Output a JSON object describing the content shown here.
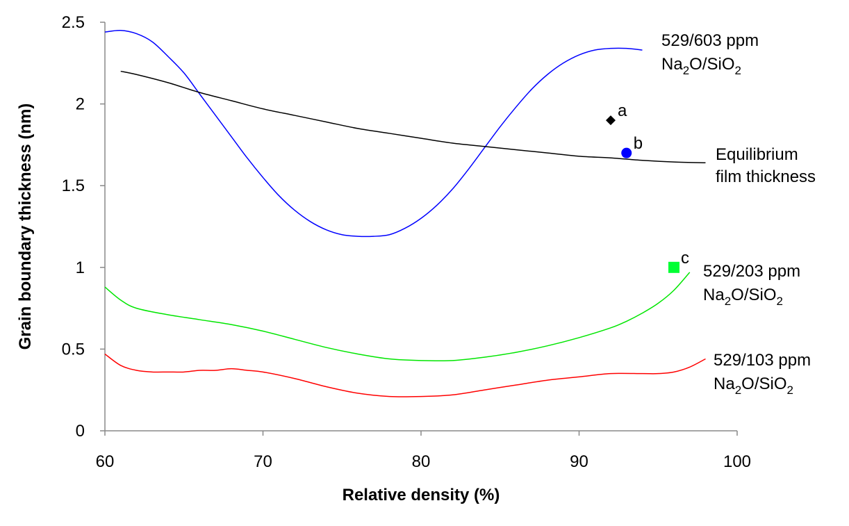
{
  "chart_data": {
    "type": "line",
    "xlabel": "Relative density (%)",
    "ylabel": "Grain boundary thickness (nm)",
    "xlim": [
      60,
      100
    ],
    "ylim": [
      0,
      2.5
    ],
    "x_ticks": [
      "60",
      "70",
      "80",
      "90",
      "100"
    ],
    "y_ticks": [
      "0",
      "0.5",
      "1",
      "1.5",
      "2",
      "2.5"
    ],
    "grid": false,
    "legend": "none",
    "series": [
      {
        "key": "s603",
        "color": "#0000ff",
        "x": [
          60,
          61,
          62,
          63,
          64,
          65,
          66,
          67,
          68,
          69,
          70,
          71,
          72,
          73,
          74,
          75,
          76,
          77,
          78,
          79,
          80,
          81,
          82,
          83,
          84,
          85,
          86,
          87,
          88,
          89,
          90,
          91,
          92,
          93,
          94
        ],
        "y": [
          2.44,
          2.45,
          2.43,
          2.38,
          2.29,
          2.19,
          2.06,
          1.93,
          1.8,
          1.67,
          1.55,
          1.44,
          1.35,
          1.28,
          1.23,
          1.2,
          1.19,
          1.19,
          1.2,
          1.24,
          1.3,
          1.38,
          1.48,
          1.6,
          1.73,
          1.86,
          1.98,
          2.09,
          2.18,
          2.25,
          2.3,
          2.33,
          2.34,
          2.34,
          2.33
        ]
      },
      {
        "key": "equilibrium",
        "color": "#000000",
        "x": [
          61,
          62,
          64,
          66,
          68,
          70,
          72,
          74,
          76,
          78,
          80,
          82,
          84,
          86,
          88,
          90,
          92,
          94,
          96,
          98
        ],
        "y": [
          2.2,
          2.18,
          2.13,
          2.07,
          2.02,
          1.97,
          1.93,
          1.89,
          1.85,
          1.82,
          1.79,
          1.76,
          1.74,
          1.72,
          1.7,
          1.68,
          1.67,
          1.655,
          1.645,
          1.64
        ]
      },
      {
        "key": "s203",
        "color": "#00e600",
        "x": [
          60,
          61,
          62,
          64,
          66,
          68,
          70,
          72,
          74,
          76,
          78,
          80,
          82,
          84,
          86,
          88,
          90,
          92,
          93,
          94,
          95,
          96,
          97
        ],
        "y": [
          0.88,
          0.8,
          0.75,
          0.71,
          0.68,
          0.65,
          0.61,
          0.56,
          0.51,
          0.47,
          0.44,
          0.43,
          0.43,
          0.45,
          0.48,
          0.52,
          0.57,
          0.63,
          0.67,
          0.72,
          0.78,
          0.86,
          0.97
        ]
      },
      {
        "key": "s103",
        "color": "#ff0000",
        "x": [
          60,
          61,
          62,
          63,
          64,
          65,
          66,
          67,
          68,
          69,
          70,
          72,
          74,
          76,
          78,
          80,
          82,
          84,
          86,
          88,
          90,
          92,
          94,
          95,
          96,
          97,
          98
        ],
        "y": [
          0.47,
          0.4,
          0.37,
          0.36,
          0.36,
          0.36,
          0.37,
          0.37,
          0.38,
          0.37,
          0.36,
          0.32,
          0.27,
          0.23,
          0.21,
          0.21,
          0.22,
          0.25,
          0.28,
          0.31,
          0.33,
          0.35,
          0.35,
          0.35,
          0.36,
          0.39,
          0.44
        ]
      }
    ],
    "points": [
      {
        "label": "a",
        "x": 92,
        "y": 1.9,
        "marker": "diamond",
        "color": "#000000"
      },
      {
        "label": "b",
        "x": 93,
        "y": 1.7,
        "marker": "circle",
        "color": "#0000ff"
      },
      {
        "label": "c",
        "x": 96,
        "y": 1.0,
        "marker": "square",
        "color": "#00ff33"
      }
    ],
    "annotations": [
      {
        "key": "s603",
        "line1": "529/603 ppm",
        "line2": [
          "Na",
          "2",
          "O/SiO",
          "2"
        ]
      },
      {
        "key": "equilibrium",
        "line1": "Equilibrium",
        "line2": [
          "film thickness"
        ]
      },
      {
        "key": "s203",
        "line1": "529/203 ppm",
        "line2": [
          "Na",
          "2",
          "O/SiO",
          "2"
        ]
      },
      {
        "key": "s103",
        "line1": "529/103 ppm",
        "line2": [
          "Na",
          "2",
          "O/SiO",
          "2"
        ]
      }
    ]
  }
}
